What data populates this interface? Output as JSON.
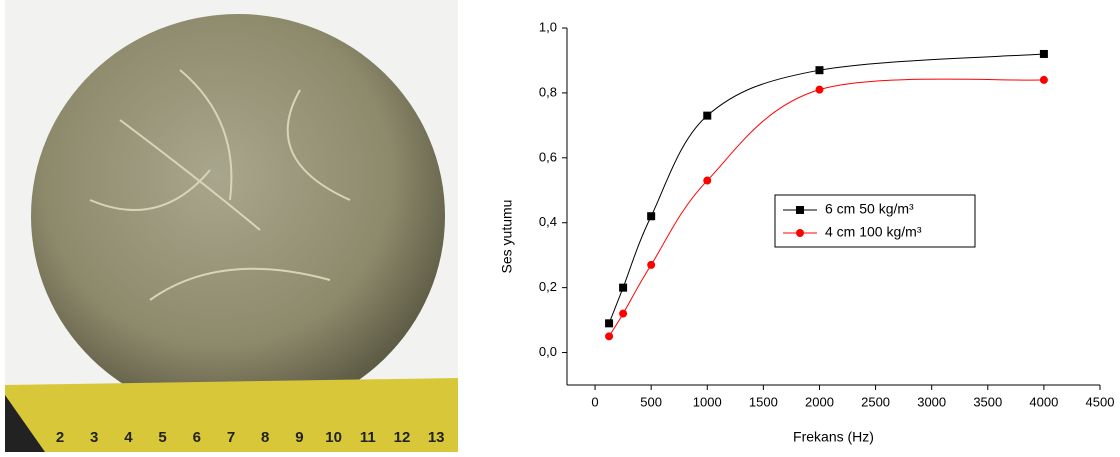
{
  "photo": {
    "ruler_labels": [
      "2",
      "3",
      "4",
      "5",
      "6",
      "7",
      "8",
      "9",
      "10",
      "11",
      "12",
      "13"
    ]
  },
  "chart_data": {
    "type": "line",
    "x_label": "Frekans (Hz)",
    "y_label": "Ses yutumu",
    "x": [
      125,
      250,
      500,
      1000,
      2000,
      4000
    ],
    "series": [
      {
        "name": "6 cm 50 kg/m³",
        "color": "#000000",
        "marker": "square",
        "values": [
          0.09,
          0.2,
          0.42,
          0.73,
          0.87,
          0.92
        ]
      },
      {
        "name": "4 cm 100 kg/m³",
        "color": "#ff0000",
        "marker": "circle",
        "values": [
          0.05,
          0.12,
          0.27,
          0.53,
          0.81,
          0.84
        ]
      }
    ],
    "xlim": [
      -250,
      4500
    ],
    "ylim": [
      -0.1,
      1.0
    ],
    "xticks": [
      0,
      500,
      1000,
      1500,
      2000,
      2500,
      3000,
      3500,
      4000,
      4500
    ],
    "yticks": [
      {
        "value": 0,
        "label": "0,0"
      },
      {
        "value": 0.2,
        "label": "0,2"
      },
      {
        "value": 0.4,
        "label": "0,4"
      },
      {
        "value": 0.6,
        "label": "0,6"
      },
      {
        "value": 0.8,
        "label": "0,8"
      },
      {
        "value": 1.0,
        "label": "1,0"
      }
    ],
    "legend": "center"
  }
}
